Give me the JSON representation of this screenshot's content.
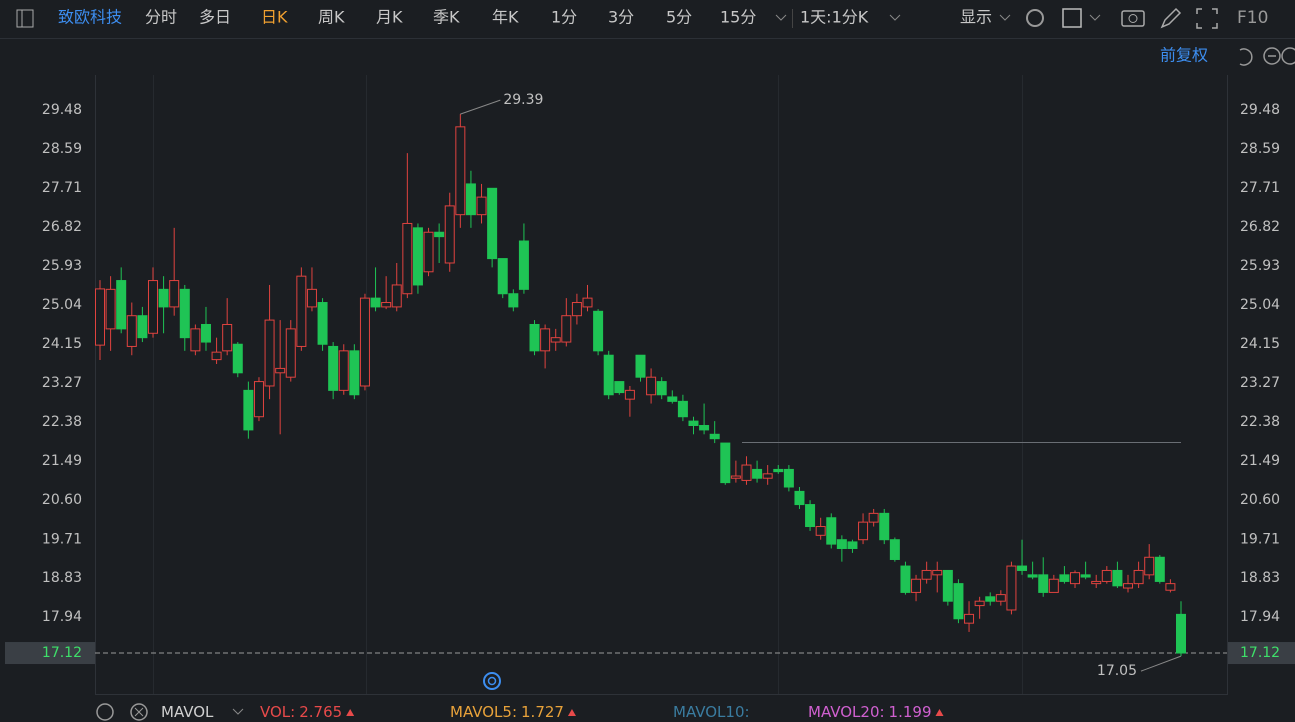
{
  "toolbar": {
    "stock_name": "致欧科技",
    "periods": [
      "分时",
      "多日",
      "日K",
      "周K",
      "月K",
      "季K",
      "年K",
      "1分",
      "3分",
      "5分",
      "15分"
    ],
    "selected": "日K",
    "range": "1天:1分K",
    "display": "显示",
    "f10": "F10"
  },
  "adjust": "前复权",
  "chart_data": {
    "type": "candlestick",
    "up_color": "#e0433f",
    "down_color": "#1fc455",
    "open": [
      24.13,
      24.5,
      25.6,
      24.1,
      24.8,
      24.4,
      25.4,
      25.0,
      25.4,
      24.0,
      24.6,
      23.8,
      24.0,
      24.15,
      23.1,
      22.5,
      23.2,
      23.5,
      23.4,
      24.1,
      25.0,
      25.1,
      24.1,
      23.1,
      24.0,
      23.2,
      25.2,
      25.0,
      25.0,
      25.3,
      26.8,
      25.8,
      26.7,
      26.0,
      27.1,
      27.8,
      27.1,
      27.7,
      26.1,
      25.3,
      26.5,
      24.6,
      24.0,
      24.2,
      24.2,
      24.8,
      25.0,
      24.9,
      23.9,
      23.3,
      22.9,
      23.9,
      23.0,
      23.3,
      22.95,
      22.85,
      22.4,
      22.3,
      22.1,
      21.9,
      21.1,
      21.05,
      21.3,
      21.1,
      21.3,
      21.3,
      20.8,
      20.5,
      19.8,
      20.2,
      19.7,
      19.65,
      19.7,
      20.1,
      20.3,
      19.7,
      19.1,
      18.5,
      18.8,
      18.9,
      19.0,
      18.7,
      17.8,
      18.2,
      18.4,
      18.3,
      18.1,
      19.1,
      18.9,
      18.9,
      18.5,
      18.9,
      18.7,
      18.9,
      18.7,
      18.75,
      19.0,
      18.6,
      18.7,
      18.9,
      19.3,
      18.55,
      18.0
    ],
    "high": [
      25.61,
      25.7,
      25.9,
      25.1,
      25.0,
      25.9,
      25.7,
      26.8,
      25.5,
      24.6,
      25.0,
      24.3,
      25.2,
      24.2,
      23.3,
      23.4,
      25.5,
      24.7,
      24.7,
      25.9,
      25.9,
      25.2,
      24.2,
      24.15,
      24.15,
      25.3,
      25.9,
      25.7,
      26.0,
      28.5,
      26.9,
      26.8,
      26.9,
      27.6,
      29.39,
      28.1,
      27.8,
      27.7,
      26.1,
      25.4,
      26.9,
      24.7,
      24.6,
      24.5,
      25.2,
      25.3,
      25.5,
      24.95,
      24.0,
      23.3,
      23.2,
      23.9,
      23.6,
      23.4,
      23.1,
      23.0,
      22.5,
      22.8,
      22.4,
      21.9,
      21.5,
      21.6,
      21.5,
      21.4,
      21.4,
      21.4,
      20.9,
      20.6,
      20.2,
      20.3,
      19.8,
      19.7,
      20.3,
      20.4,
      20.4,
      19.75,
      19.2,
      18.9,
      19.2,
      19.2,
      19.0,
      18.8,
      18.3,
      18.4,
      18.5,
      18.55,
      19.2,
      19.7,
      19.2,
      19.3,
      18.9,
      19.1,
      19.0,
      19.2,
      18.9,
      19.1,
      19.2,
      18.9,
      19.2,
      19.6,
      19.35,
      18.8,
      18.3
    ],
    "low": [
      23.79,
      24.0,
      24.4,
      23.9,
      24.2,
      24.3,
      24.4,
      24.8,
      24.0,
      23.9,
      24.0,
      23.7,
      23.9,
      23.4,
      22.0,
      22.4,
      22.9,
      22.1,
      23.3,
      24.0,
      24.9,
      24.0,
      22.9,
      23.0,
      22.9,
      23.1,
      24.9,
      24.95,
      24.9,
      25.2,
      25.3,
      25.7,
      26.0,
      25.8,
      26.8,
      26.8,
      26.9,
      25.9,
      25.2,
      24.9,
      25.3,
      23.9,
      23.6,
      24.0,
      24.1,
      24.6,
      24.9,
      23.9,
      22.9,
      23.0,
      22.5,
      23.3,
      22.8,
      22.9,
      22.8,
      22.4,
      22.1,
      22.1,
      21.9,
      20.95,
      21.0,
      20.95,
      21.0,
      20.95,
      21.2,
      20.8,
      20.4,
      19.9,
      19.7,
      19.5,
      19.2,
      19.4,
      19.6,
      20.0,
      19.6,
      19.2,
      18.45,
      18.3,
      18.7,
      18.5,
      18.2,
      17.8,
      17.6,
      17.9,
      18.2,
      18.2,
      18.0,
      18.9,
      18.8,
      18.4,
      18.5,
      18.7,
      18.6,
      18.8,
      18.6,
      18.7,
      18.6,
      18.5,
      18.6,
      18.8,
      18.7,
      18.5,
      17.05
    ],
    "close": [
      25.41,
      25.4,
      24.5,
      24.8,
      24.3,
      25.6,
      25.0,
      25.6,
      24.3,
      24.5,
      24.2,
      23.97,
      24.6,
      23.5,
      22.2,
      23.3,
      24.7,
      23.6,
      24.5,
      25.7,
      25.4,
      24.15,
      23.1,
      24.0,
      23.0,
      25.2,
      25.0,
      25.1,
      25.5,
      26.9,
      25.5,
      26.7,
      26.6,
      27.3,
      29.1,
      27.1,
      27.5,
      26.1,
      25.3,
      25.0,
      25.4,
      24.0,
      24.5,
      24.3,
      24.8,
      25.1,
      25.2,
      24.0,
      23.0,
      23.05,
      23.1,
      23.4,
      23.4,
      23.0,
      22.85,
      22.5,
      22.3,
      22.2,
      22.0,
      21.0,
      21.15,
      21.4,
      21.1,
      21.2,
      21.25,
      20.9,
      20.5,
      20.0,
      20.0,
      19.6,
      19.5,
      19.5,
      20.1,
      20.3,
      19.7,
      19.25,
      18.5,
      18.8,
      19.0,
      19.0,
      18.3,
      17.9,
      18.0,
      18.3,
      18.3,
      18.45,
      19.1,
      19.0,
      18.85,
      18.5,
      18.8,
      18.75,
      18.95,
      18.85,
      18.75,
      19.0,
      18.65,
      18.7,
      19.0,
      19.3,
      18.75,
      18.7,
      17.12
    ],
    "ylim": [
      16.21,
      30.28
    ],
    "yticks": [
      17.94,
      18.83,
      19.71,
      {
        "value": 20.6,
        "label": "20.60"
      },
      21.49,
      22.38,
      23.27,
      24.15,
      25.04,
      25.93,
      26.82,
      27.71,
      28.59,
      29.48
    ],
    "last_price": 17.12,
    "high_marker": 29.39,
    "low_marker": 17.05
  },
  "indicators": [
    {
      "label": "MAVOL",
      "color": "#d0d0d0"
    },
    {
      "label": "VOL:",
      "value": 2.765,
      "color": "#e84a4a"
    },
    {
      "label": "MAVOL5:",
      "value": 1.727,
      "color": "#e8a23a"
    },
    {
      "label": "MAVOL10:",
      "color": "#3a7ca0"
    },
    {
      "label": "MAVOL20:",
      "value": 1.199,
      "color": "#d060d0"
    }
  ]
}
